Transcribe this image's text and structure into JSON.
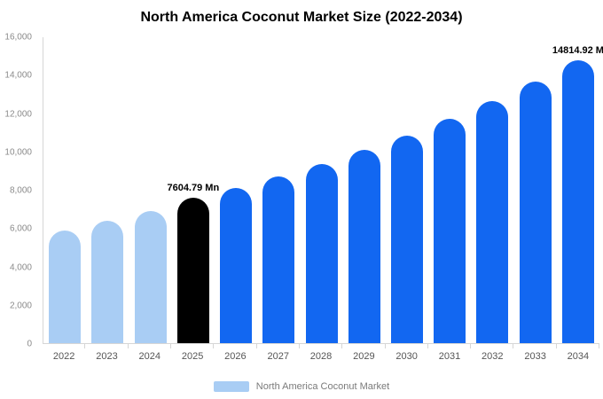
{
  "chart_data": {
    "type": "bar",
    "title": "North America Coconut Market Size (2022-2034)",
    "categories": [
      "2022",
      "2023",
      "2024",
      "2025",
      "2026",
      "2027",
      "2028",
      "2029",
      "2030",
      "2031",
      "2032",
      "2033",
      "2034"
    ],
    "values": [
      5900,
      6400,
      6900,
      7604.79,
      8100,
      8700,
      9350,
      10100,
      10850,
      11750,
      12650,
      13700,
      14814.92
    ],
    "unit": "Mn",
    "ylim": [
      0,
      16000
    ],
    "yticks": [
      0,
      2000,
      4000,
      6000,
      8000,
      10000,
      12000,
      14000,
      16000
    ],
    "ytick_labels": [
      "0",
      "2,000",
      "4,000",
      "6,000",
      "8,000",
      "10,000",
      "12,000",
      "14,000",
      "16,000"
    ],
    "grid": false,
    "legend_position": "bottom",
    "legend": [
      {
        "label": "North America Coconut Market",
        "color": "#a9cdf4"
      }
    ],
    "bar_colors": [
      "#a9cdf4",
      "#a9cdf4",
      "#a9cdf4",
      "#000000",
      "#1267f1",
      "#1267f1",
      "#1267f1",
      "#1267f1",
      "#1267f1",
      "#1267f1",
      "#1267f1",
      "#1267f1",
      "#1267f1"
    ],
    "annotations": [
      {
        "category": "2025",
        "text": "7604.79 Mn"
      },
      {
        "category": "2034",
        "text": "14814.92 M"
      }
    ]
  },
  "colors": {
    "historical_bar": "#a9cdf4",
    "highlight_bar": "#000000",
    "forecast_bar": "#1267f1",
    "axis_line": "#d6d6d6",
    "tick_text": "#8a8a8a",
    "background": "#ffffff"
  }
}
